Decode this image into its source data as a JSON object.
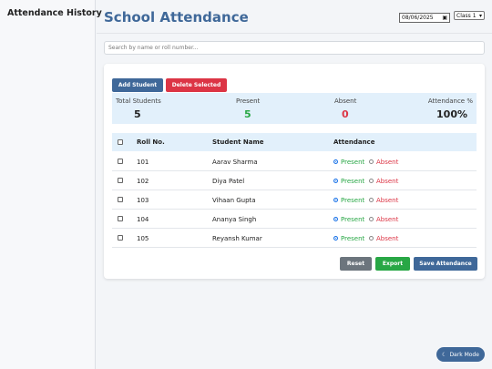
{
  "sidebar": {
    "title": "Attendance History"
  },
  "header": {
    "title": "School Attendance",
    "date": "08/06/2025",
    "calendar_icon": "calendar-icon",
    "class_select": {
      "selected": "Class 1"
    }
  },
  "search": {
    "placeholder": "Search by name or roll number..."
  },
  "actions": {
    "add_label": "Add Student",
    "delete_label": "Delete Selected"
  },
  "stats": {
    "total_label": "Total Students",
    "total_value": "5",
    "present_label": "Present",
    "present_value": "5",
    "absent_label": "Absent",
    "absent_value": "0",
    "pct_label": "Attendance %",
    "pct_value": "100%"
  },
  "table": {
    "headers": {
      "roll": "Roll No.",
      "name": "Student Name",
      "attendance": "Attendance"
    },
    "present_label": "Present",
    "absent_label": "Absent",
    "rows": [
      {
        "roll": "101",
        "name": "Aarav Sharma",
        "status": "Present"
      },
      {
        "roll": "102",
        "name": "Diya Patel",
        "status": "Present"
      },
      {
        "roll": "103",
        "name": "Vihaan Gupta",
        "status": "Present"
      },
      {
        "roll": "104",
        "name": "Ananya Singh",
        "status": "Present"
      },
      {
        "roll": "105",
        "name": "Reyansh Kumar",
        "status": "Present"
      }
    ]
  },
  "footer": {
    "reset_label": "Reset",
    "export_label": "Export",
    "save_label": "Save Attendance"
  },
  "dark_mode": {
    "label": "Dark Mode",
    "icon": "moon-icon"
  },
  "colors": {
    "accent": "#3f6899",
    "present": "#28a745",
    "absent": "#dc3545",
    "stats_bg": "#e2f0fb"
  }
}
